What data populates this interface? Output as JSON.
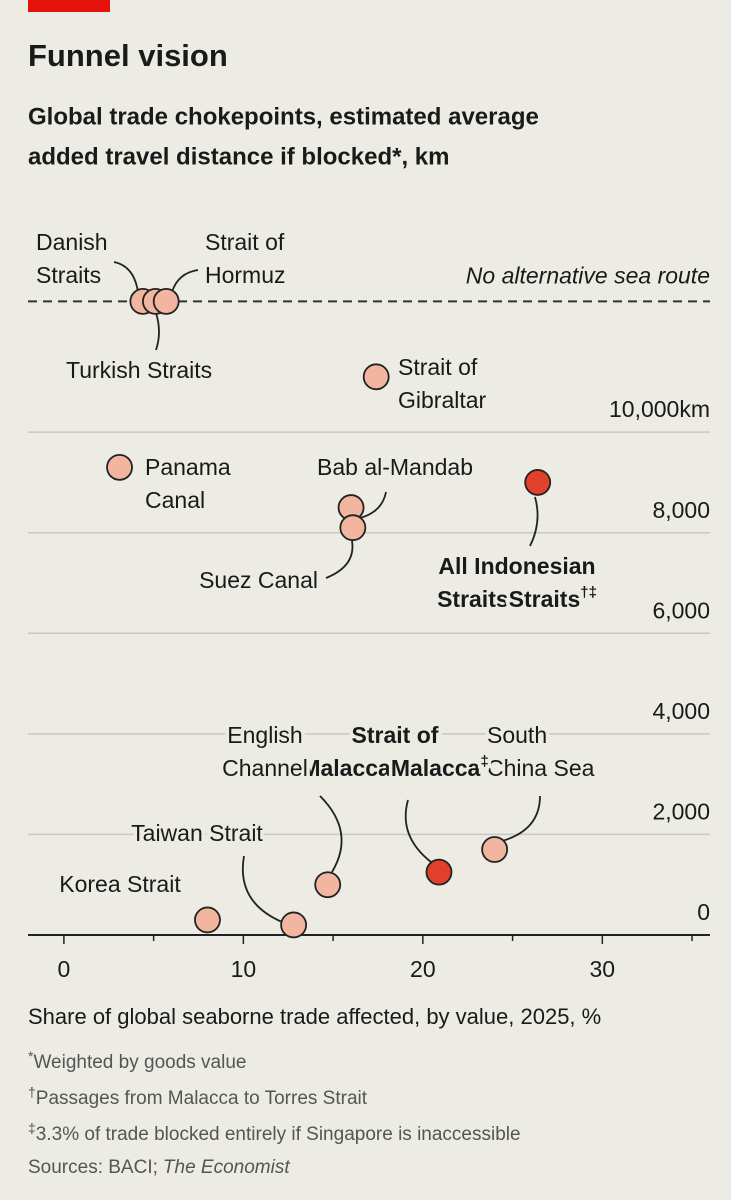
{
  "chart_data": {
    "type": "scatter",
    "title": "Funnel vision",
    "subtitle": [
      "Global trade chokepoints, estimated average",
      "added travel distance if blocked*, km"
    ],
    "x_label": "Share of global seaborne trade affected, by value, 2025, %",
    "xlim": [
      -2,
      36
    ],
    "xticks": [
      0,
      10,
      20,
      30
    ],
    "xminor_ticks": [
      5,
      15,
      25,
      35
    ],
    "ylim": [
      0,
      14000
    ],
    "yticks": [
      0,
      {
        "value": 2000,
        "label": "2,000"
      },
      {
        "value": 4000,
        "label": "4,000"
      },
      {
        "value": 6000,
        "label": "6,000"
      },
      {
        "value": 8000,
        "label": "8,000"
      },
      {
        "value": 10000,
        "label": "10,000km"
      }
    ],
    "grid": true,
    "reference_line": {
      "value": 12600,
      "label": "No alternative sea route"
    },
    "points": [
      {
        "label": [
          "Danish",
          "Straits"
        ],
        "x": 4.4,
        "y": 12600,
        "color": "#f2b6a0"
      },
      {
        "label": [
          "Turkish Straits"
        ],
        "x": 5.1,
        "y": 12600,
        "color": "#f2b6a0"
      },
      {
        "label": [
          "Strait of",
          "Hormuz"
        ],
        "x": 5.7,
        "y": 12600,
        "color": "#f2b6a0"
      },
      {
        "label": [
          "Strait of",
          "Gibraltar"
        ],
        "x": 17.4,
        "y": 11100,
        "color": "#f2b6a0"
      },
      {
        "label": [
          "Panama",
          "Canal"
        ],
        "x": 3.1,
        "y": 9300,
        "color": "#f2b6a0"
      },
      {
        "label": [
          "Bab al-Mandab"
        ],
        "x": 16.0,
        "y": 8500,
        "color": "#f2b6a0"
      },
      {
        "label": [
          "Suez Canal"
        ],
        "x": 16.1,
        "y": 8100,
        "color": "#f2b6a0"
      },
      {
        "label": [
          "All Indonesian",
          "Straits"
        ],
        "mark": "†‡",
        "bold": true,
        "x": 26.4,
        "y": 9000,
        "color": "#e0402c"
      },
      {
        "label": [
          "South",
          "China Sea"
        ],
        "x": 24.0,
        "y": 1700,
        "color": "#f2b6a0"
      },
      {
        "label": [
          "Strait of",
          "Malacca"
        ],
        "mark": "‡",
        "bold": true,
        "x": 20.9,
        "y": 1250,
        "color": "#e0402c"
      },
      {
        "label": [
          "English",
          "Channel"
        ],
        "x": 14.7,
        "y": 1000,
        "color": "#f2b6a0"
      },
      {
        "label": [
          "Taiwan Strait"
        ],
        "x": 12.8,
        "y": 200,
        "color": "#f2b6a0"
      },
      {
        "label": [
          "Korea Strait"
        ],
        "x": 8.0,
        "y": 300,
        "color": "#f2b6a0"
      }
    ],
    "notes": [
      {
        "mark": "*",
        "text": "Weighted by goods value"
      },
      {
        "mark": "†",
        "text": "Passages from Malacca to Torres Strait"
      },
      {
        "mark": "‡",
        "text": "3.3% of trade blocked entirely if Singapore is inaccessible"
      }
    ],
    "sources": "Sources: BACI;",
    "publication": "The Economist"
  }
}
